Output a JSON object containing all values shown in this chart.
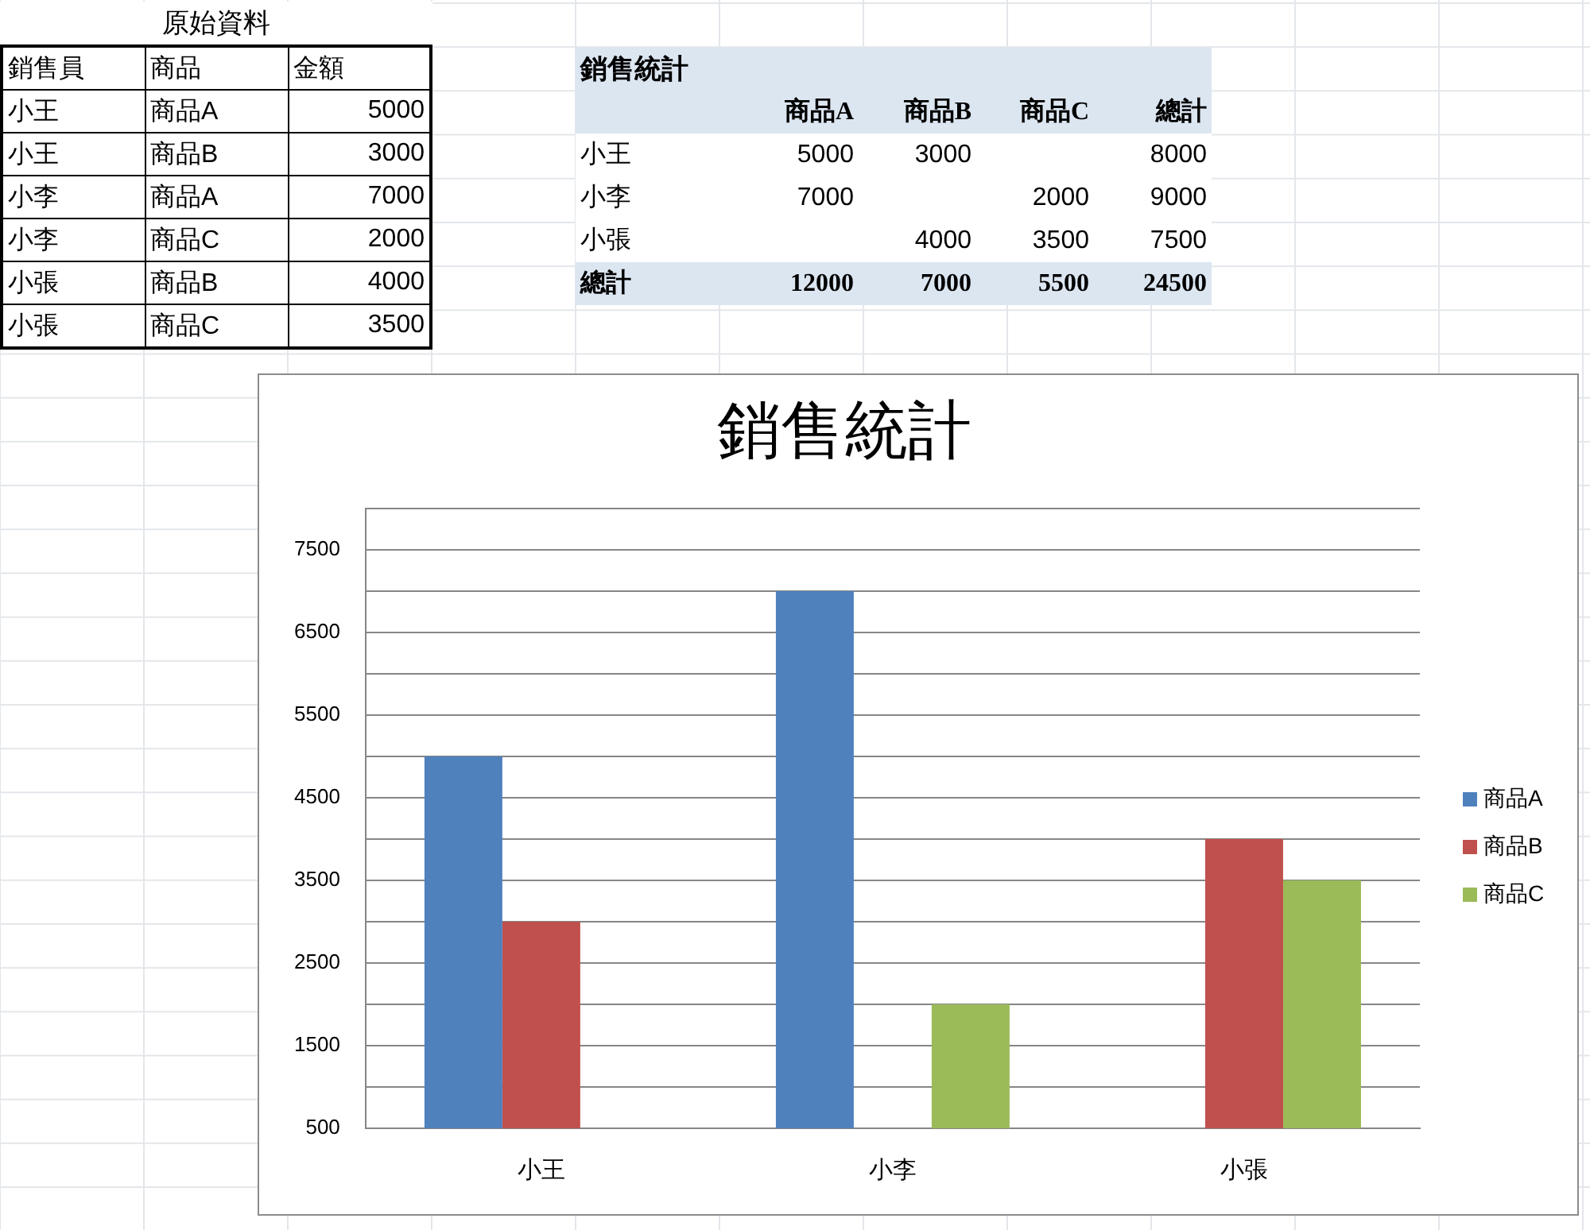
{
  "chart_data": [
    {
      "type": "other",
      "title": "原始資料",
      "categories": [
        "銷售員",
        "商品",
        "金額"
      ],
      "annotations": [
        "小王",
        "商品A",
        "5000",
        "小王",
        "商品B",
        "3000",
        "小李",
        "商品A",
        "7000",
        "小李",
        "商品C",
        "2000",
        "小張",
        "商品B",
        "4000",
        "小張",
        "商品C",
        "3500"
      ]
    },
    {
      "type": "heatmap",
      "title": "銷售統計",
      "categories": [
        "商品A",
        "商品B",
        "商品C",
        "總計"
      ],
      "y_categories": [
        "小王",
        "小李",
        "小張",
        "總計"
      ],
      "cells": [
        [
          5000,
          3000,
          null,
          8000
        ],
        [
          7000,
          null,
          2000,
          9000
        ],
        [
          null,
          4000,
          3500,
          7500
        ],
        [
          12000,
          7000,
          5500,
          24500
        ]
      ],
      "data_labels": true
    },
    {
      "type": "bar",
      "title": "銷售統計",
      "categories": [
        "小王",
        "小李",
        "小張"
      ],
      "series": [
        {
          "name": "商品A",
          "color": "#4f81bd",
          "values": [
            5000,
            7000,
            null
          ]
        },
        {
          "name": "商品B",
          "color": "#c0504d",
          "values": [
            3000,
            null,
            4000
          ]
        },
        {
          "name": "商品C",
          "color": "#9bbb59",
          "values": [
            null,
            2000,
            3500
          ]
        }
      ],
      "ylim": [
        500,
        8000
      ],
      "yticks": [
        500,
        {
          "value": 1000,
          "label": null
        },
        1500,
        {
          "value": 2000,
          "label": null
        },
        2500,
        {
          "value": 3000,
          "label": null
        },
        3500,
        {
          "value": 4000,
          "label": null
        },
        4500,
        {
          "value": 5000,
          "label": null
        },
        5500,
        {
          "value": 6000,
          "label": null
        },
        6500,
        {
          "value": 7000,
          "label": null
        },
        7500,
        {
          "value": 8000,
          "label": null
        }
      ],
      "grid": "y",
      "legend": "right"
    }
  ]
}
